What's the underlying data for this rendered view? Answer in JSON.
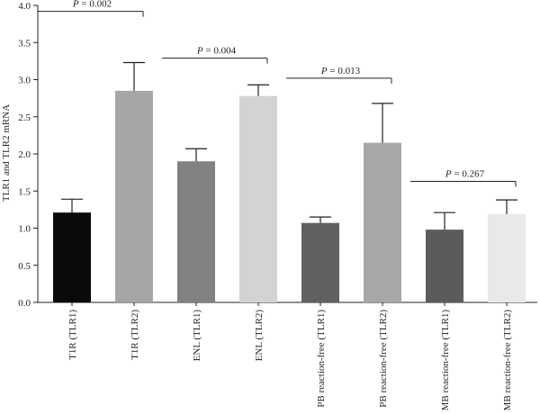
{
  "chart_data": {
    "type": "bar",
    "ylabel": "TLR1 and TLR2 mRNA",
    "ylim": [
      0,
      4.0
    ],
    "yticks": [
      "0.0",
      "0.5",
      "1.0",
      "1.5",
      "2.0",
      "2.5",
      "3.0",
      "3.5",
      "4.0"
    ],
    "categories": [
      "T1R (TLR1)",
      "T1R (TLR2)",
      "ENL (TLR1)",
      "ENL (TLR2)",
      "PB reaction-free (TLR1)",
      "PB reaction-free (TLR2)",
      "MB reaction-free (TLR1)",
      "MB reaction-free (TLR2)"
    ],
    "values": [
      1.21,
      2.85,
      1.9,
      2.78,
      1.07,
      2.15,
      0.98,
      1.19
    ],
    "errors": [
      0.18,
      0.38,
      0.17,
      0.15,
      0.08,
      0.53,
      0.23,
      0.19
    ],
    "colors": [
      "#0b0b0c",
      "#a6a6a6",
      "#808180",
      "#d3d3d3",
      "#616161",
      "#a8a8a8",
      "#5b5b5c",
      "#e9e9ea"
    ],
    "annotations": [
      {
        "text": "P = 0.002",
        "from": 0,
        "to": 1,
        "y": 3.92
      },
      {
        "text": "P = 0.004",
        "from": 2,
        "to": 3,
        "y": 3.29
      },
      {
        "text": "P = 0.013",
        "from": 4,
        "to": 5,
        "y": 3.02
      },
      {
        "text": "P = 0.267",
        "from": 6,
        "to": 7,
        "y": 1.63
      }
    ],
    "grid": false
  }
}
